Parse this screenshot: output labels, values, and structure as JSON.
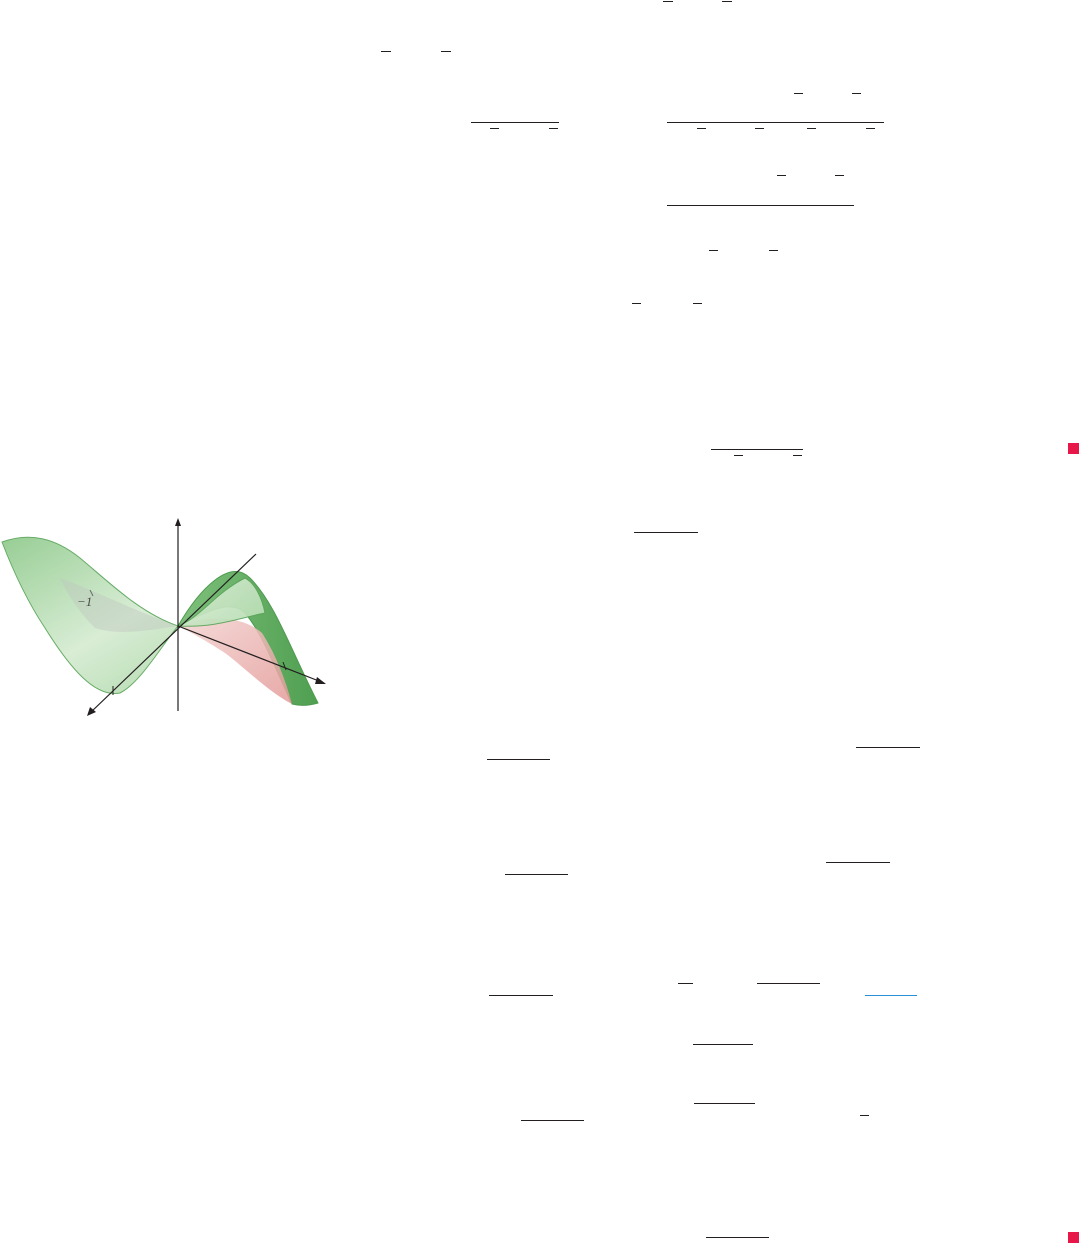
{
  "figure": {
    "axis_tick_label": "−1",
    "colors": {
      "surface": "#a9d6a4",
      "surface_edge": "#5aa55a",
      "shadow": "#e8a3a0",
      "axis": "#231f20"
    }
  },
  "marks": {
    "end_of_example_color": "#e8174a",
    "link_color": "#2a8fd6"
  }
}
